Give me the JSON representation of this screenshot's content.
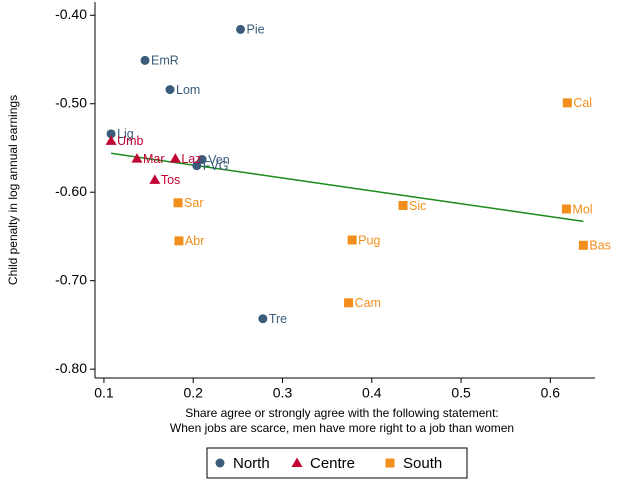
{
  "chart_data": {
    "type": "scatter",
    "x_label": "Share agree or strongly agree with the following statement:",
    "x_label_2": "When jobs are scarce, men have more right to a job than women",
    "y_label": "Child penalty in log annual earnings",
    "xlim": [
      0.09,
      0.65
    ],
    "ylim": [
      -0.81,
      -0.385
    ],
    "xticks": [
      0.1,
      0.2,
      0.3,
      0.4,
      0.5,
      0.6
    ],
    "yticks": [
      {
        "value": -0.4,
        "label": "-0.40"
      },
      {
        "value": -0.5,
        "label": "-0.50"
      },
      {
        "value": -0.6,
        "label": "-0.60"
      },
      {
        "value": -0.7,
        "label": "-0.70"
      },
      {
        "value": -0.8,
        "label": "-0.80"
      }
    ],
    "series": [
      {
        "name": "North",
        "color": "#3a5b7a",
        "marker": "circle",
        "labels": [
          "Pie",
          "EmR",
          "Lom",
          "Lig",
          "FVG",
          "Ven",
          "Tre"
        ],
        "x": [
          0.253,
          0.146,
          0.174,
          0.108,
          0.204,
          0.21,
          0.278
        ],
        "values": [
          -0.416,
          -0.451,
          -0.484,
          -0.534,
          -0.57,
          -0.563,
          -0.743
        ]
      },
      {
        "name": "Centre",
        "color": "#c10534",
        "marker": "triangle",
        "labels": [
          "Umb",
          "Mar",
          "Laz",
          "Tos"
        ],
        "x": [
          0.108,
          0.137,
          0.18,
          0.157
        ],
        "values": [
          -0.542,
          -0.562,
          -0.562,
          -0.586
        ]
      },
      {
        "name": "South",
        "color": "#f28e1c",
        "marker": "square",
        "labels": [
          "Cal",
          "Mol",
          "Bas",
          "Sic",
          "Sar",
          "Abr",
          "Pug",
          "Cam"
        ],
        "x": [
          0.619,
          0.618,
          0.637,
          0.435,
          0.183,
          0.184,
          0.378,
          0.374
        ],
        "values": [
          -0.499,
          -0.619,
          -0.66,
          -0.615,
          -0.612,
          -0.655,
          -0.654,
          -0.725
        ]
      }
    ],
    "fit": {
      "color": "#1a8a1a",
      "x": [
        0.108,
        0.637
      ],
      "values": [
        -0.556,
        -0.633
      ]
    }
  }
}
